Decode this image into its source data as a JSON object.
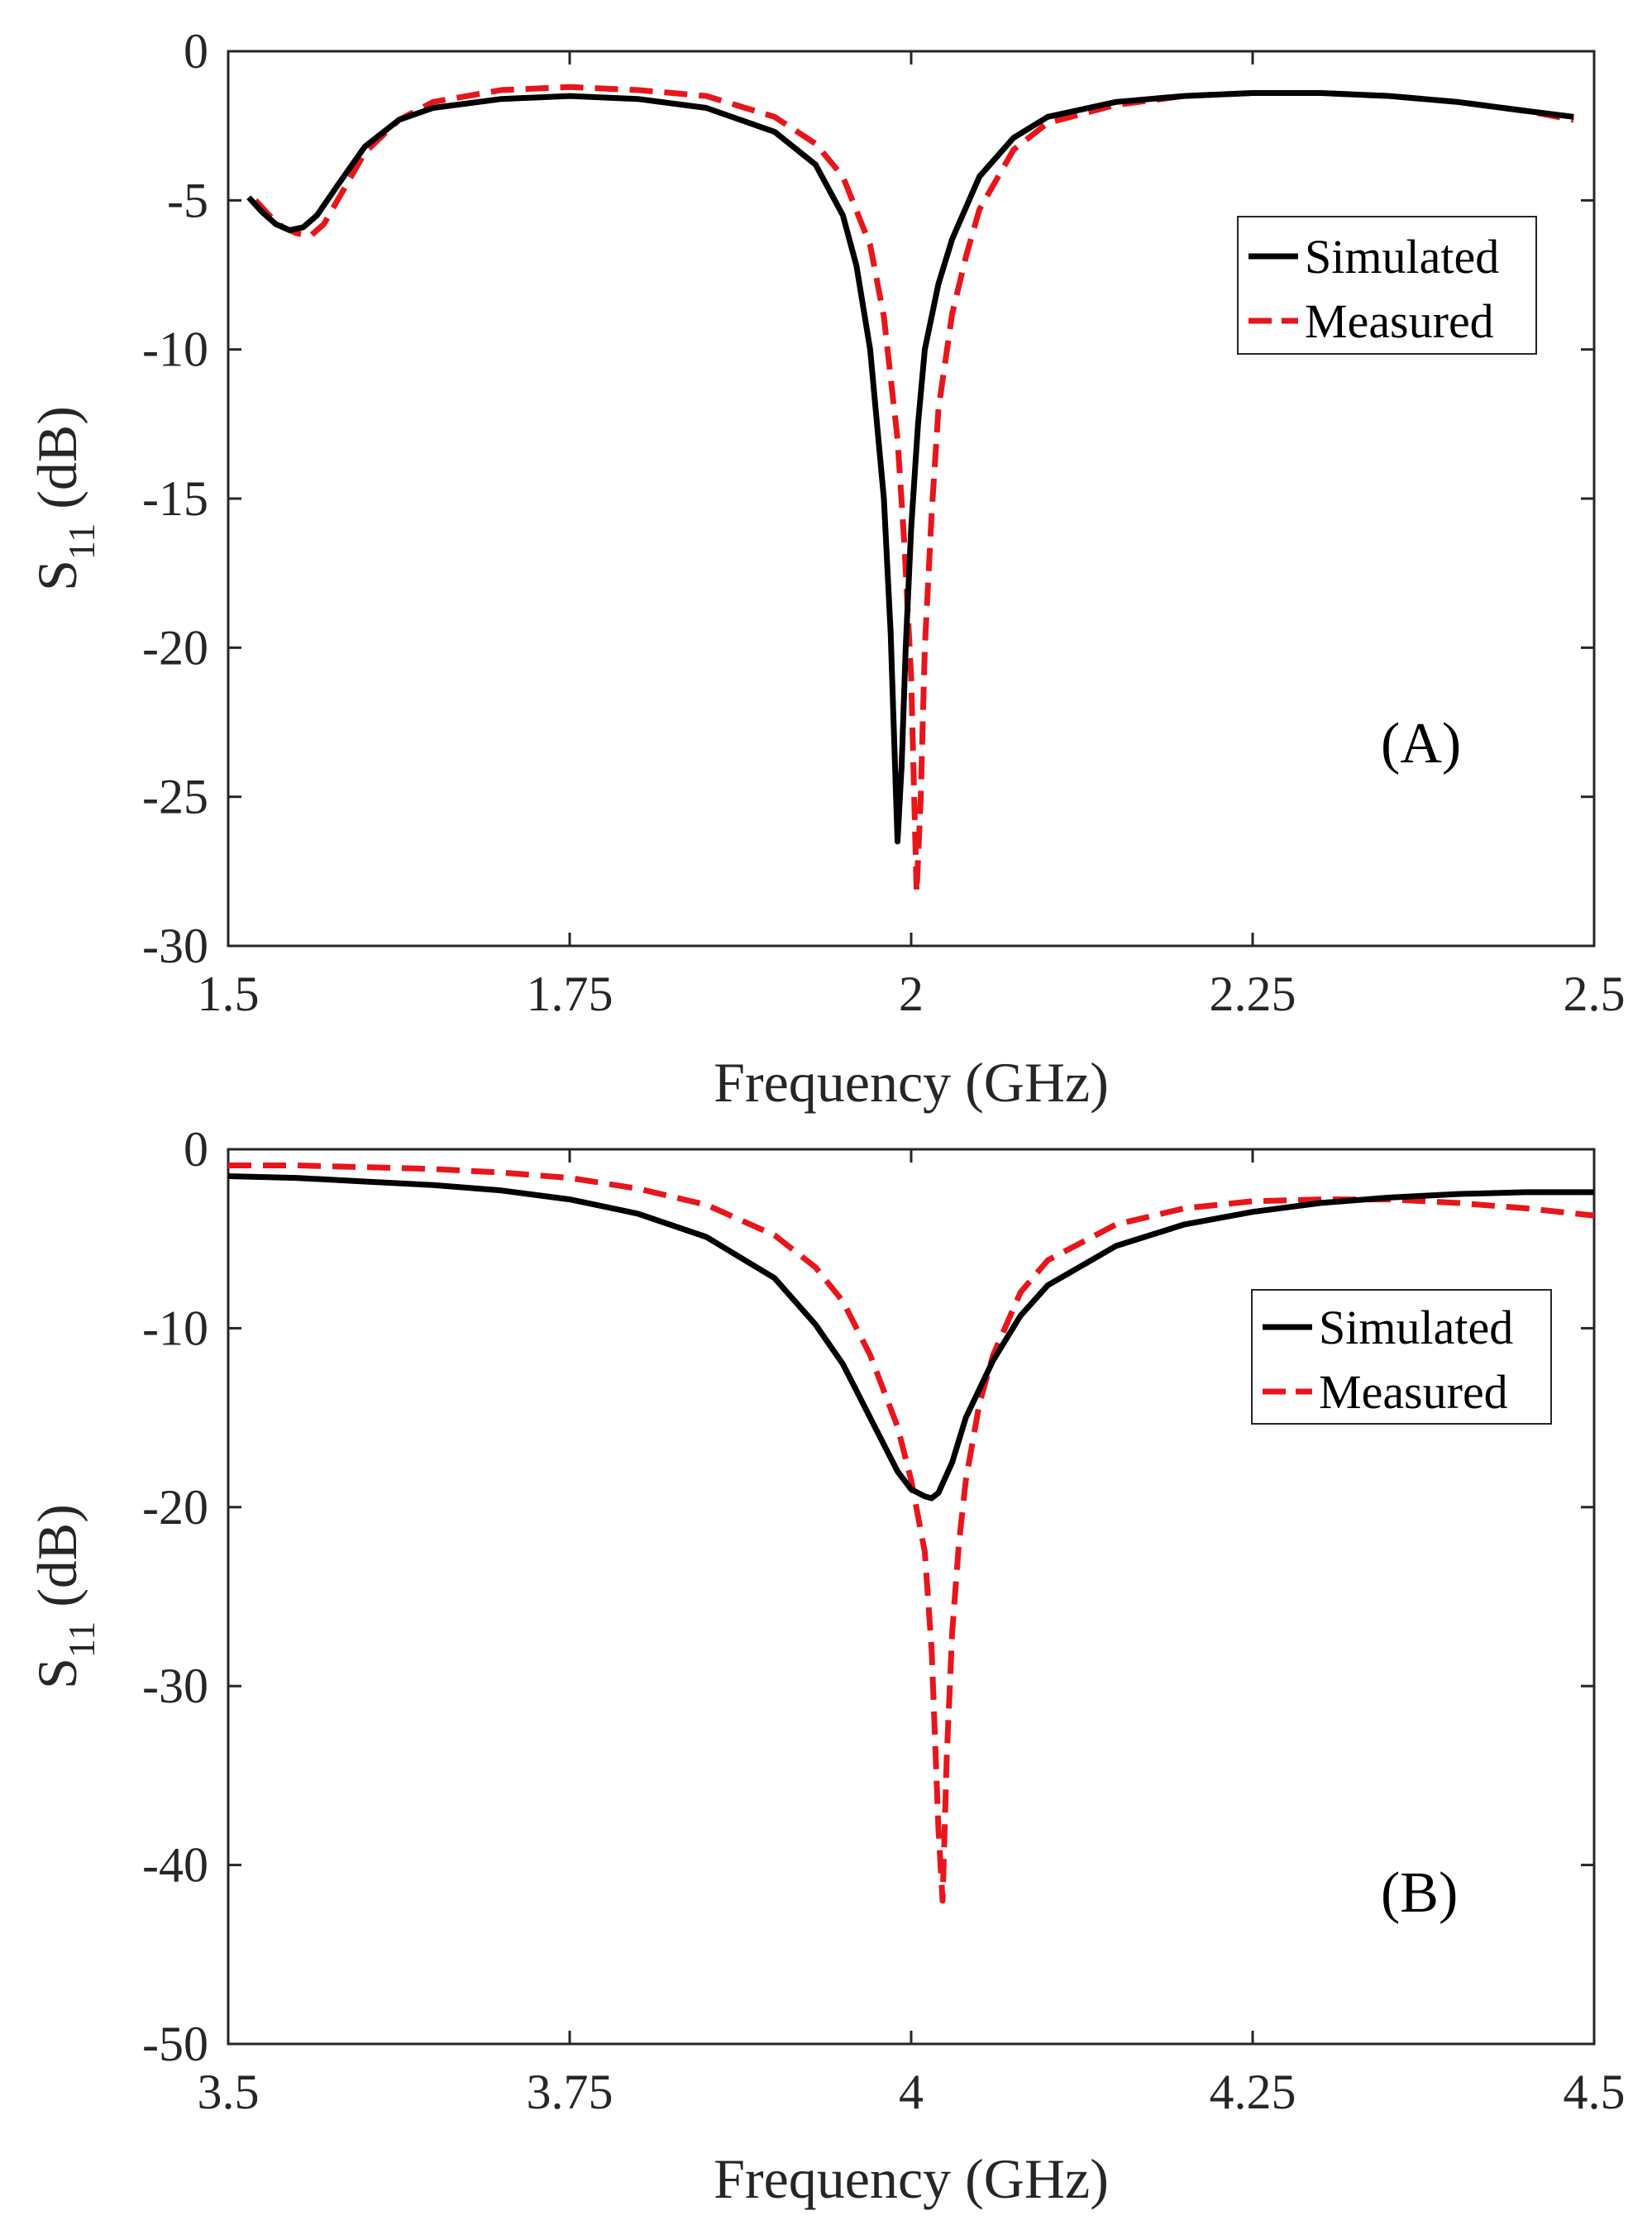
{
  "colors": {
    "simulated": "#000000",
    "measured": "#e8151b",
    "axis": "#262626"
  },
  "chart_data": [
    {
      "type": "line",
      "panel_label": "(A)",
      "xlabel": "Frequency (GHz)",
      "ylabel": {
        "main": "S",
        "sub": "11",
        "unit": " (dB)"
      },
      "xlim": [
        1.5,
        2.5
      ],
      "ylim": [
        -30,
        0
      ],
      "xticks": [
        1.5,
        1.75,
        2,
        2.25,
        2.5
      ],
      "xtick_labels": [
        "1.5",
        "1.75",
        "2",
        "2.25",
        "2.5"
      ],
      "yticks": [
        0,
        -5,
        -10,
        -15,
        -20,
        -25,
        -30
      ],
      "ytick_labels": [
        "0",
        "-5",
        "-10",
        "-15",
        "-20",
        "-25",
        "-30"
      ],
      "legend": [
        "Simulated",
        "Measured"
      ],
      "legend_position": "top-right",
      "series": [
        {
          "name": "Simulated",
          "style": "solid",
          "x": [
            1.515,
            1.525,
            1.535,
            1.545,
            1.555,
            1.565,
            1.58,
            1.6,
            1.625,
            1.65,
            1.7,
            1.75,
            1.8,
            1.85,
            1.9,
            1.93,
            1.95,
            1.96,
            1.97,
            1.98,
            1.985,
            1.99,
            1.993,
            1.996,
            2.0,
            2.005,
            2.01,
            2.02,
            2.03,
            2.05,
            2.075,
            2.1,
            2.15,
            2.2,
            2.25,
            2.3,
            2.35,
            2.4,
            2.45,
            2.485
          ],
          "y": [
            -4.9,
            -5.4,
            -5.8,
            -6.0,
            -5.9,
            -5.5,
            -4.5,
            -3.2,
            -2.3,
            -1.9,
            -1.6,
            -1.5,
            -1.6,
            -1.9,
            -2.7,
            -3.8,
            -5.5,
            -7.2,
            -10.0,
            -15.0,
            -19.5,
            -26.5,
            -24.0,
            -20.0,
            -16.0,
            -12.5,
            -10.0,
            -7.8,
            -6.3,
            -4.2,
            -2.9,
            -2.2,
            -1.7,
            -1.5,
            -1.4,
            -1.4,
            -1.5,
            -1.7,
            -2.0,
            -2.2
          ]
        },
        {
          "name": "Measured",
          "style": "dashed",
          "x": [
            1.52,
            1.53,
            1.54,
            1.55,
            1.56,
            1.57,
            1.58,
            1.6,
            1.625,
            1.65,
            1.7,
            1.75,
            1.8,
            1.85,
            1.9,
            1.93,
            1.95,
            1.97,
            1.98,
            1.99,
            1.995,
            2.0,
            2.004,
            2.007,
            2.01,
            2.015,
            2.02,
            2.03,
            2.04,
            2.05,
            2.075,
            2.1,
            2.15,
            2.2,
            2.25,
            2.3,
            2.35,
            2.4,
            2.45,
            2.485
          ],
          "y": [
            -5.0,
            -5.5,
            -5.9,
            -6.1,
            -6.2,
            -5.8,
            -5.0,
            -3.4,
            -2.3,
            -1.7,
            -1.3,
            -1.2,
            -1.3,
            -1.5,
            -2.2,
            -3.1,
            -4.2,
            -6.5,
            -8.9,
            -13.0,
            -16.5,
            -21.0,
            -28.2,
            -25.0,
            -20.0,
            -15.5,
            -12.0,
            -8.8,
            -6.9,
            -5.3,
            -3.3,
            -2.4,
            -1.8,
            -1.5,
            -1.4,
            -1.4,
            -1.5,
            -1.7,
            -2.0,
            -2.3
          ]
        }
      ]
    },
    {
      "type": "line",
      "panel_label": "(B)",
      "xlabel": "Frequency (GHz)",
      "ylabel": {
        "main": "S",
        "sub": "11",
        "unit": " (dB)"
      },
      "xlim": [
        3.5,
        4.5
      ],
      "ylim": [
        -50,
        0
      ],
      "xticks": [
        3.5,
        3.75,
        4,
        4.25,
        4.5
      ],
      "xtick_labels": [
        "3.5",
        "3.75",
        "4",
        "4.25",
        "4.5"
      ],
      "yticks": [
        0,
        -10,
        -20,
        -30,
        -40,
        -50
      ],
      "ytick_labels": [
        "0",
        "-10",
        "-20",
        "-30",
        "-40",
        "-50"
      ],
      "legend": [
        "Simulated",
        "Measured"
      ],
      "legend_position": "right",
      "series": [
        {
          "name": "Simulated",
          "style": "solid",
          "x": [
            3.5,
            3.55,
            3.6,
            3.65,
            3.7,
            3.75,
            3.8,
            3.85,
            3.9,
            3.93,
            3.95,
            3.97,
            3.99,
            4.0,
            4.01,
            4.015,
            4.02,
            4.03,
            4.04,
            4.06,
            4.08,
            4.1,
            4.15,
            4.2,
            4.25,
            4.3,
            4.35,
            4.4,
            4.45,
            4.5
          ],
          "y": [
            -1.5,
            -1.6,
            -1.8,
            -2.0,
            -2.3,
            -2.8,
            -3.6,
            -4.9,
            -7.2,
            -9.8,
            -12.0,
            -15.0,
            -18.0,
            -19.0,
            -19.4,
            -19.5,
            -19.2,
            -17.5,
            -15.0,
            -11.8,
            -9.3,
            -7.6,
            -5.4,
            -4.2,
            -3.5,
            -3.0,
            -2.7,
            -2.5,
            -2.4,
            -2.4
          ]
        },
        {
          "name": "Measured",
          "style": "dashed",
          "x": [
            3.5,
            3.55,
            3.6,
            3.65,
            3.7,
            3.75,
            3.8,
            3.85,
            3.9,
            3.93,
            3.95,
            3.97,
            3.99,
            4.0,
            4.01,
            4.015,
            4.02,
            4.023,
            4.026,
            4.03,
            4.035,
            4.04,
            4.05,
            4.06,
            4.08,
            4.1,
            4.15,
            4.2,
            4.25,
            4.3,
            4.35,
            4.4,
            4.45,
            4.5
          ],
          "y": [
            -0.9,
            -0.9,
            -1.0,
            -1.1,
            -1.3,
            -1.6,
            -2.2,
            -3.1,
            -4.8,
            -6.6,
            -8.5,
            -11.5,
            -15.5,
            -18.5,
            -22.5,
            -28.0,
            -38.0,
            -42.0,
            -34.0,
            -27.0,
            -22.0,
            -18.5,
            -14.2,
            -11.5,
            -8.0,
            -6.2,
            -4.2,
            -3.3,
            -2.9,
            -2.8,
            -2.8,
            -3.0,
            -3.3,
            -3.7
          ]
        }
      ]
    }
  ]
}
